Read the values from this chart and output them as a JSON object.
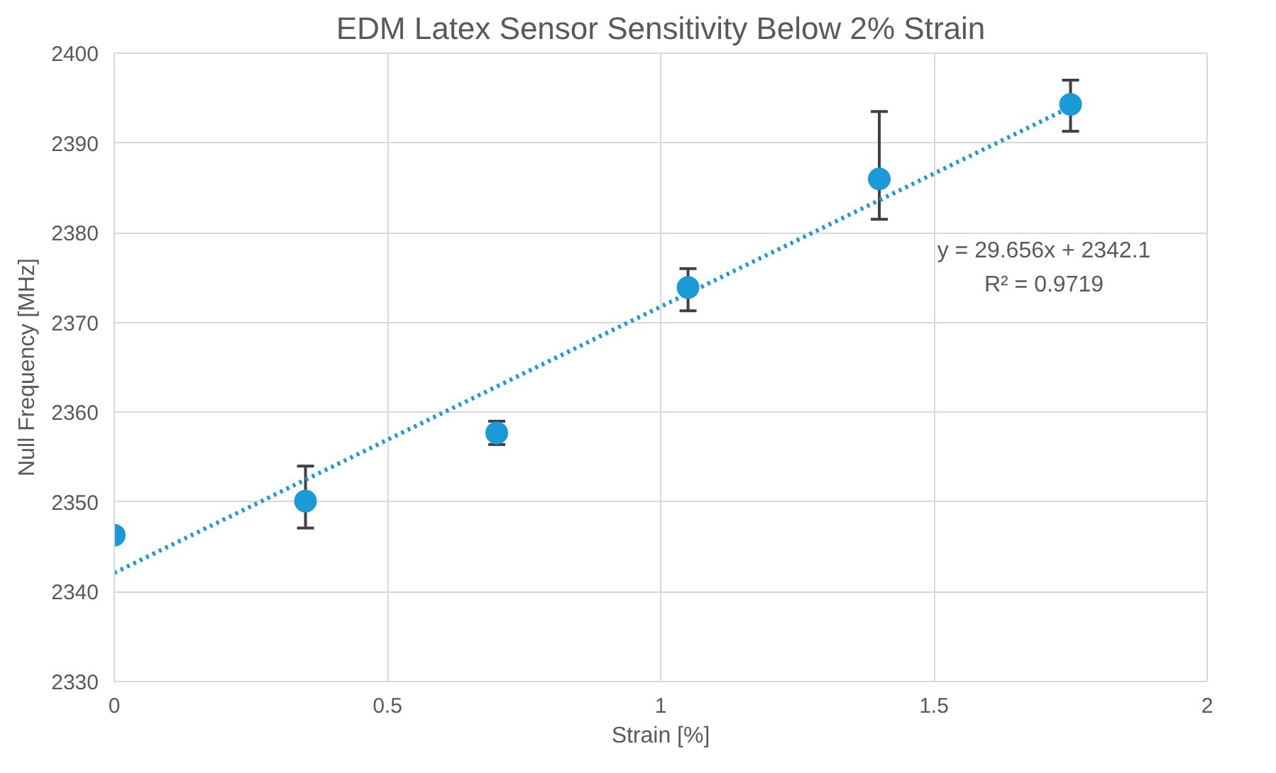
{
  "chart_data": {
    "type": "scatter",
    "title": "EDM Latex Sensor Sensitivity Below 2% Strain",
    "xlabel": "Strain [%]",
    "ylabel": "Null Frequency [MHz]",
    "annotations": [
      "y = 29.656x + 2342.1",
      "R² = 0.9719"
    ],
    "series": [
      {
        "color": "#1a9ad6",
        "marker": "circle",
        "x": [
          0,
          0.35,
          0.7,
          1.05,
          1.4,
          1.75
        ],
        "values": [
          2346.3,
          2350.1,
          2357.7,
          2373.9,
          2386.0,
          2394.3
        ],
        "errors": [
          null,
          [
            2347.1,
            2354.0
          ],
          [
            2356.4,
            2359.0
          ],
          [
            2371.3,
            2376.0
          ],
          [
            2381.5,
            2393.5
          ],
          [
            2391.3,
            2397.0
          ]
        ]
      },
      {
        "type": "line",
        "color": "#1a9ad6",
        "line_style": "dotted",
        "marker": "none",
        "x": [
          0,
          1.75
        ],
        "values": [
          2342.1,
          2394.0
        ]
      }
    ],
    "xlim": [
      0,
      2
    ],
    "xticks": [
      0,
      0.5,
      1,
      1.5,
      2
    ],
    "ylim": [
      2330,
      2400
    ],
    "yticks": [
      2330,
      2340,
      2350,
      2360,
      2370,
      2380,
      2390,
      2400
    ],
    "grid": true
  }
}
